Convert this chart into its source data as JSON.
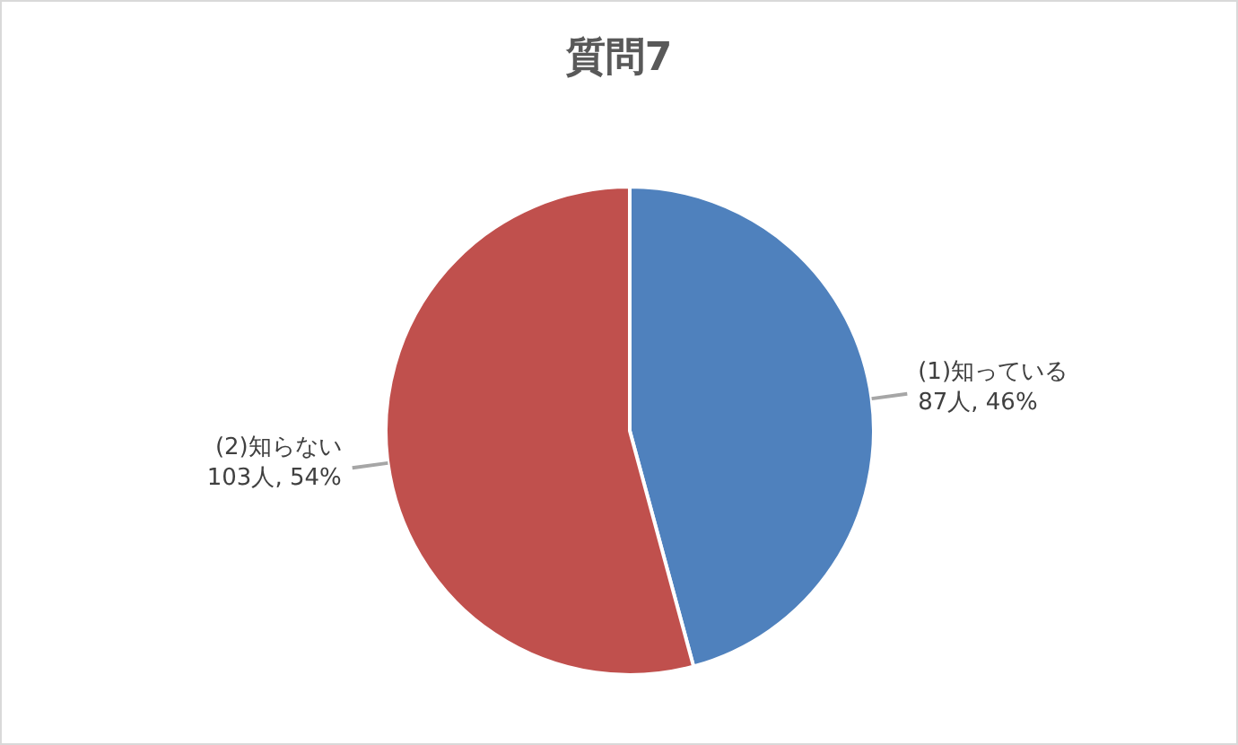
{
  "chart_data": {
    "type": "pie",
    "title": "質問7",
    "categories": [
      "(1)知っている",
      "(2)知らない"
    ],
    "values": [
      87,
      103
    ],
    "value_labels": [
      "87人, 46%",
      "103人, 54%"
    ],
    "colors": [
      "#4f81bd",
      "#c0504d"
    ],
    "legend": false
  }
}
